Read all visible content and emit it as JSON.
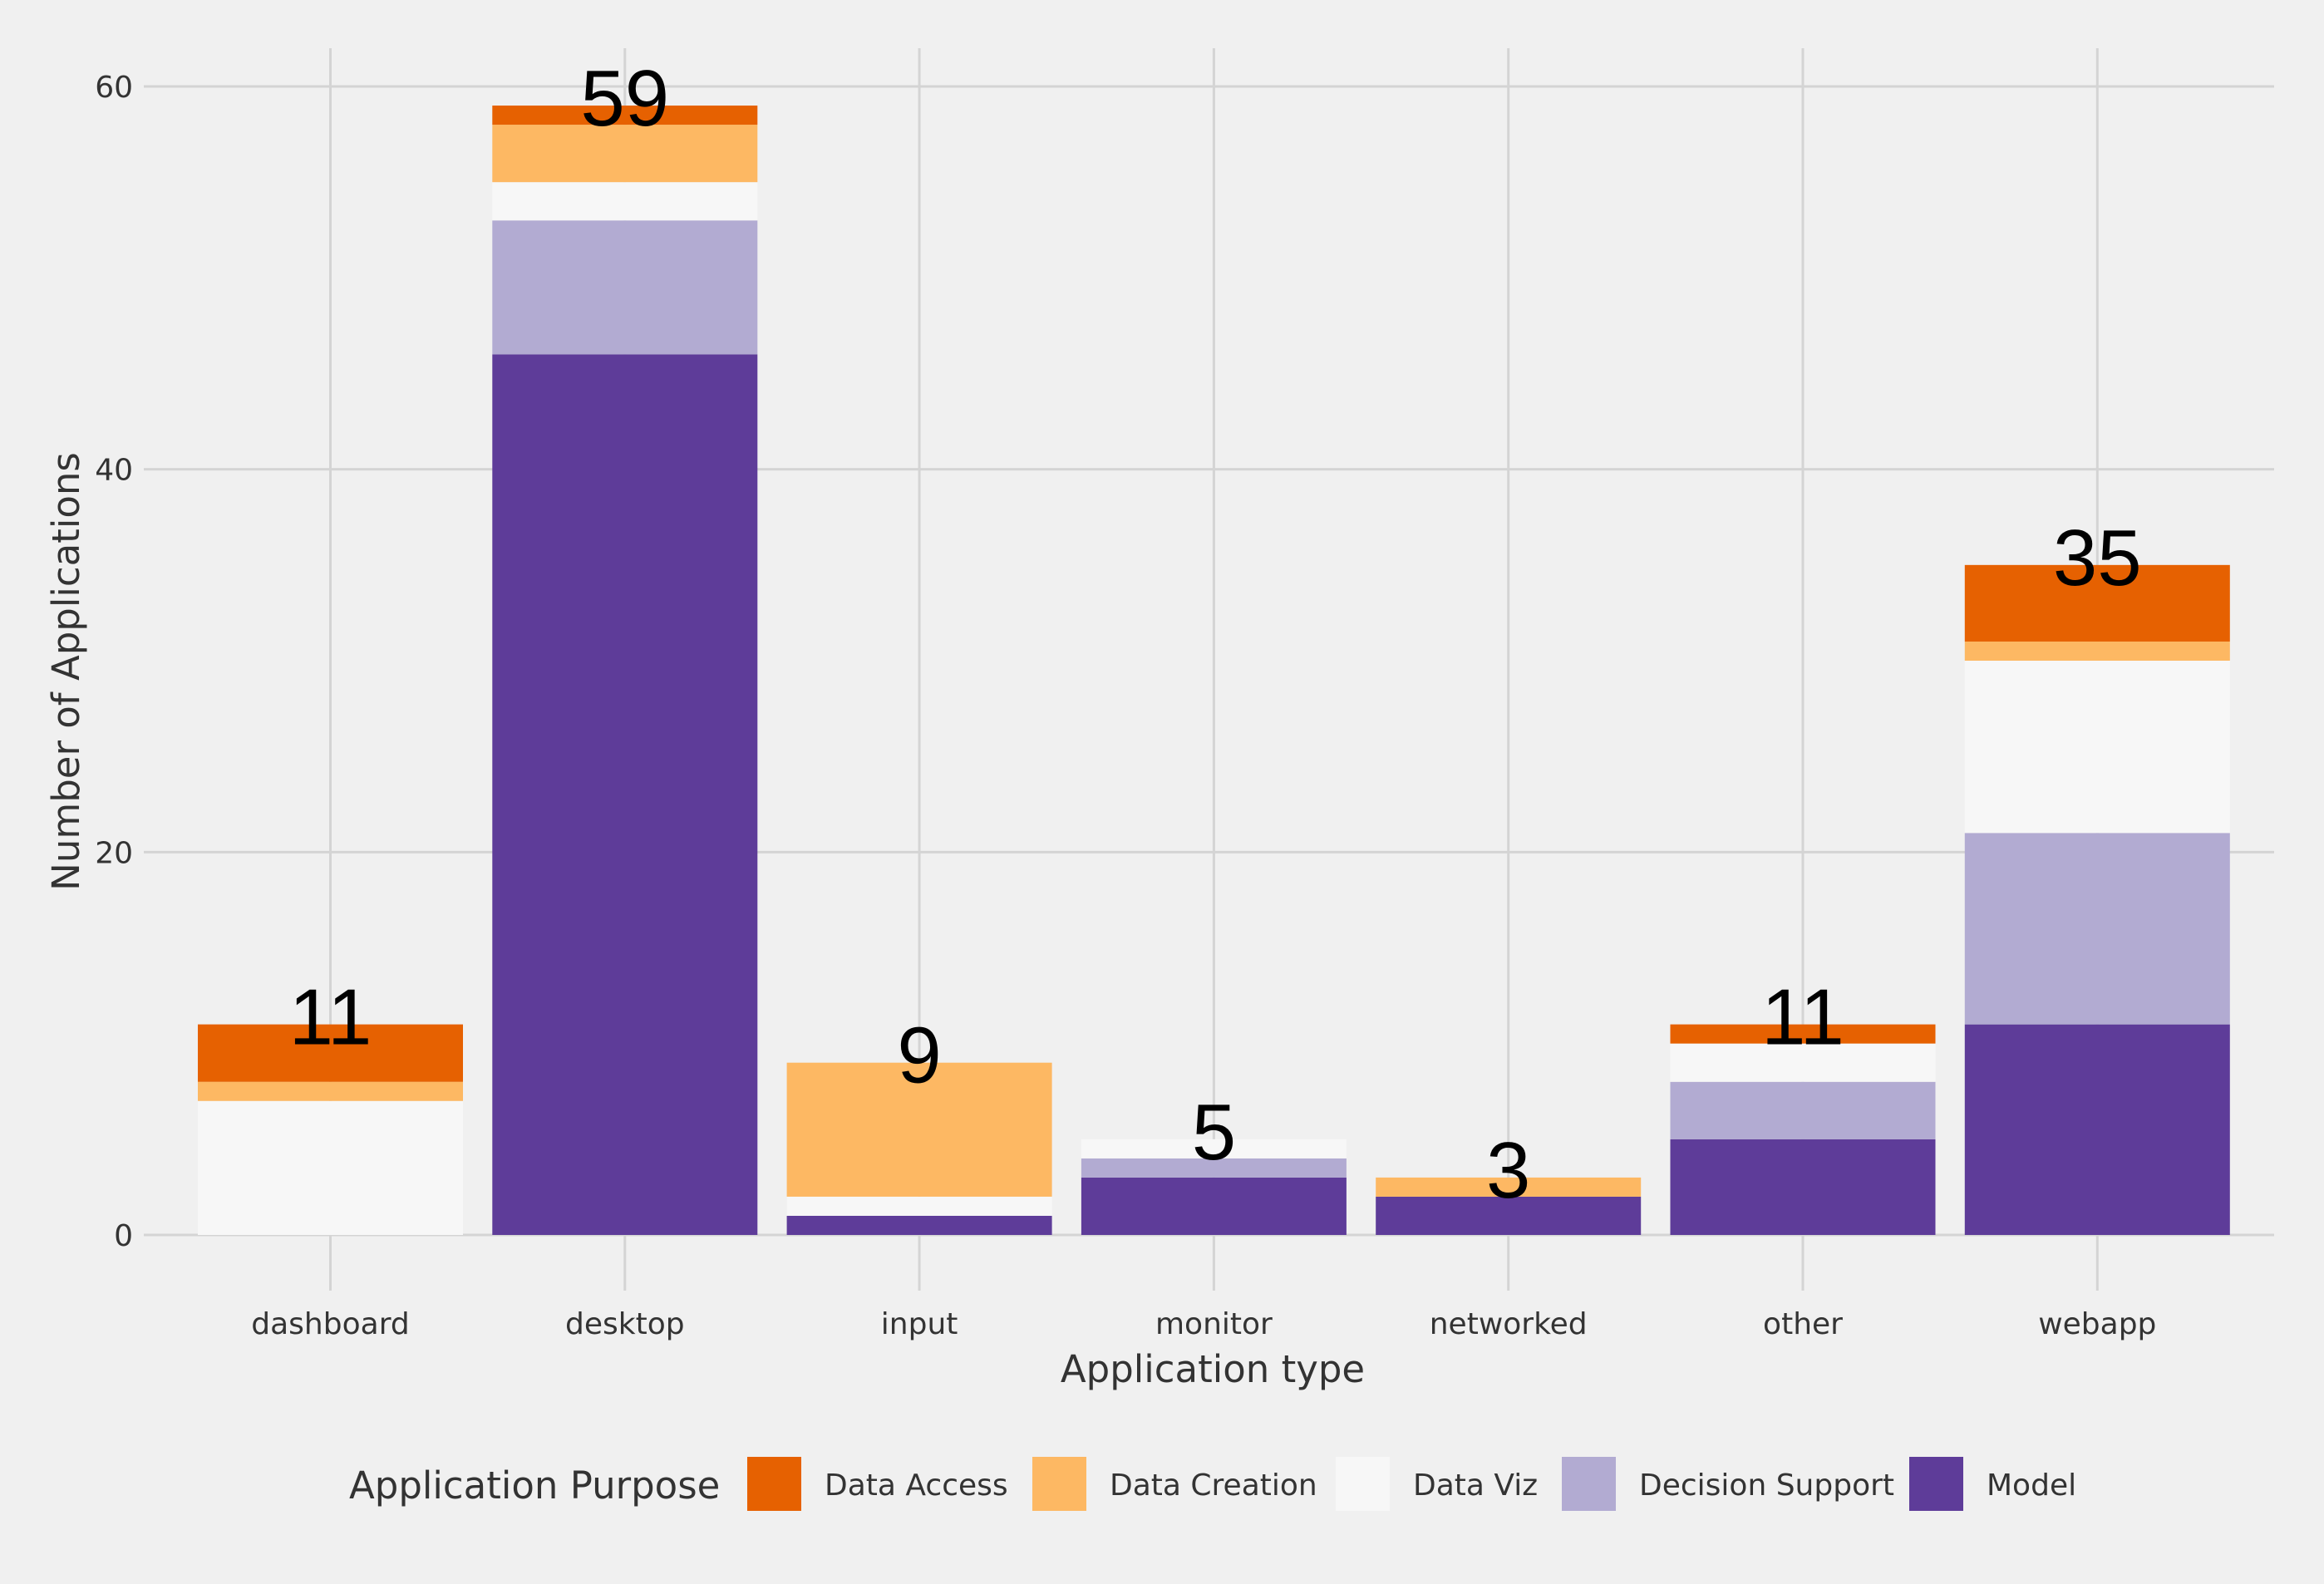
{
  "chart_data": {
    "type": "bar",
    "stacked": true,
    "title": "",
    "xlabel": "Application type",
    "ylabel": "Number of Applications",
    "ylim": [
      0,
      62
    ],
    "yticks": [
      0,
      20,
      40,
      60
    ],
    "grid": true,
    "categories": [
      "dashboard",
      "desktop",
      "input",
      "monitor",
      "networked",
      "other",
      "webapp"
    ],
    "series": [
      {
        "name": "Model",
        "color": "#5e3c99",
        "values": [
          0,
          46,
          1,
          3,
          2,
          5,
          11
        ]
      },
      {
        "name": "Decision Support",
        "color": "#b2abd2",
        "values": [
          0,
          7,
          0,
          1,
          0,
          3,
          10
        ]
      },
      {
        "name": "Data Viz",
        "color": "#f7f7f7",
        "values": [
          7,
          2,
          1,
          1,
          0,
          2,
          9
        ]
      },
      {
        "name": "Data Creation",
        "color": "#fdb863",
        "values": [
          1,
          3,
          7,
          0,
          1,
          0,
          1
        ]
      },
      {
        "name": "Data Access",
        "color": "#e66101",
        "values": [
          3,
          1,
          0,
          0,
          0,
          1,
          4
        ]
      }
    ],
    "totals": [
      11,
      59,
      9,
      5,
      3,
      11,
      35
    ],
    "legend": {
      "title": "Application Purpose",
      "position": "bottom",
      "order": [
        "Data Access",
        "Data Creation",
        "Data Viz",
        "Decision Support",
        "Model"
      ]
    }
  }
}
